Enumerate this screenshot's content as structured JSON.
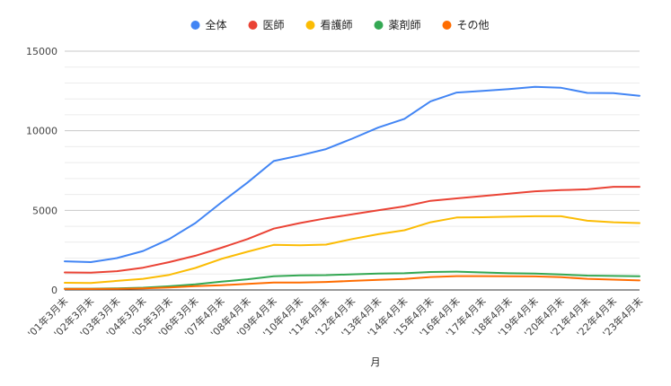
{
  "chart_data": {
    "type": "line",
    "xlabel": "月",
    "ylabel": "",
    "ylim": [
      0,
      15000
    ],
    "yticks": [
      0,
      5000,
      10000,
      15000
    ],
    "grid": true,
    "legend_position": "top",
    "categories": [
      "'01年3月末",
      "'02年3月末",
      "'03年3月末",
      "'04年3月末",
      "'05年3月末",
      "'06年3月末",
      "'07年4月末",
      "'08年4月末",
      "'09年4月末",
      "'10年4月末",
      "'11年4月末",
      "'12年4月末",
      "'13年4月末",
      "'14年4月末",
      "'15年4月末",
      "'16年4月末",
      "'17年4月末",
      "'18年4月末",
      "'19年4月末",
      "'20年4月末",
      "'21年4月末",
      "'22年4月末",
      "'23年4月末"
    ],
    "series": [
      {
        "name": "全体",
        "color": "#4285f4",
        "values": [
          1800,
          1750,
          2000,
          2450,
          3200,
          4200,
          5500,
          6750,
          8100,
          8450,
          8850,
          9500,
          10200,
          10750,
          11850,
          12400,
          12500,
          12620,
          12760,
          12700,
          12380,
          12360,
          12200
        ]
      },
      {
        "name": "医師",
        "color": "#ea4335",
        "values": [
          1100,
          1080,
          1180,
          1400,
          1750,
          2150,
          2650,
          3200,
          3850,
          4200,
          4500,
          4750,
          5000,
          5250,
          5600,
          5750,
          5900,
          6050,
          6200,
          6270,
          6320,
          6480,
          6480
        ]
      },
      {
        "name": "看護師",
        "color": "#fbbc04",
        "values": [
          450,
          440,
          570,
          700,
          950,
          1380,
          1950,
          2400,
          2830,
          2800,
          2850,
          3200,
          3500,
          3750,
          4250,
          4550,
          4570,
          4600,
          4630,
          4630,
          4350,
          4250,
          4200
        ]
      },
      {
        "name": "薬剤師",
        "color": "#34a853",
        "values": [
          80,
          80,
          100,
          140,
          230,
          350,
          520,
          670,
          860,
          920,
          930,
          980,
          1030,
          1050,
          1130,
          1150,
          1100,
          1050,
          1030,
          970,
          900,
          880,
          860
        ]
      },
      {
        "name": "その他",
        "color": "#ff6d01",
        "values": [
          60,
          60,
          70,
          100,
          160,
          240,
          300,
          380,
          470,
          470,
          500,
          570,
          640,
          690,
          810,
          870,
          870,
          860,
          850,
          800,
          700,
          650,
          600
        ]
      }
    ]
  }
}
